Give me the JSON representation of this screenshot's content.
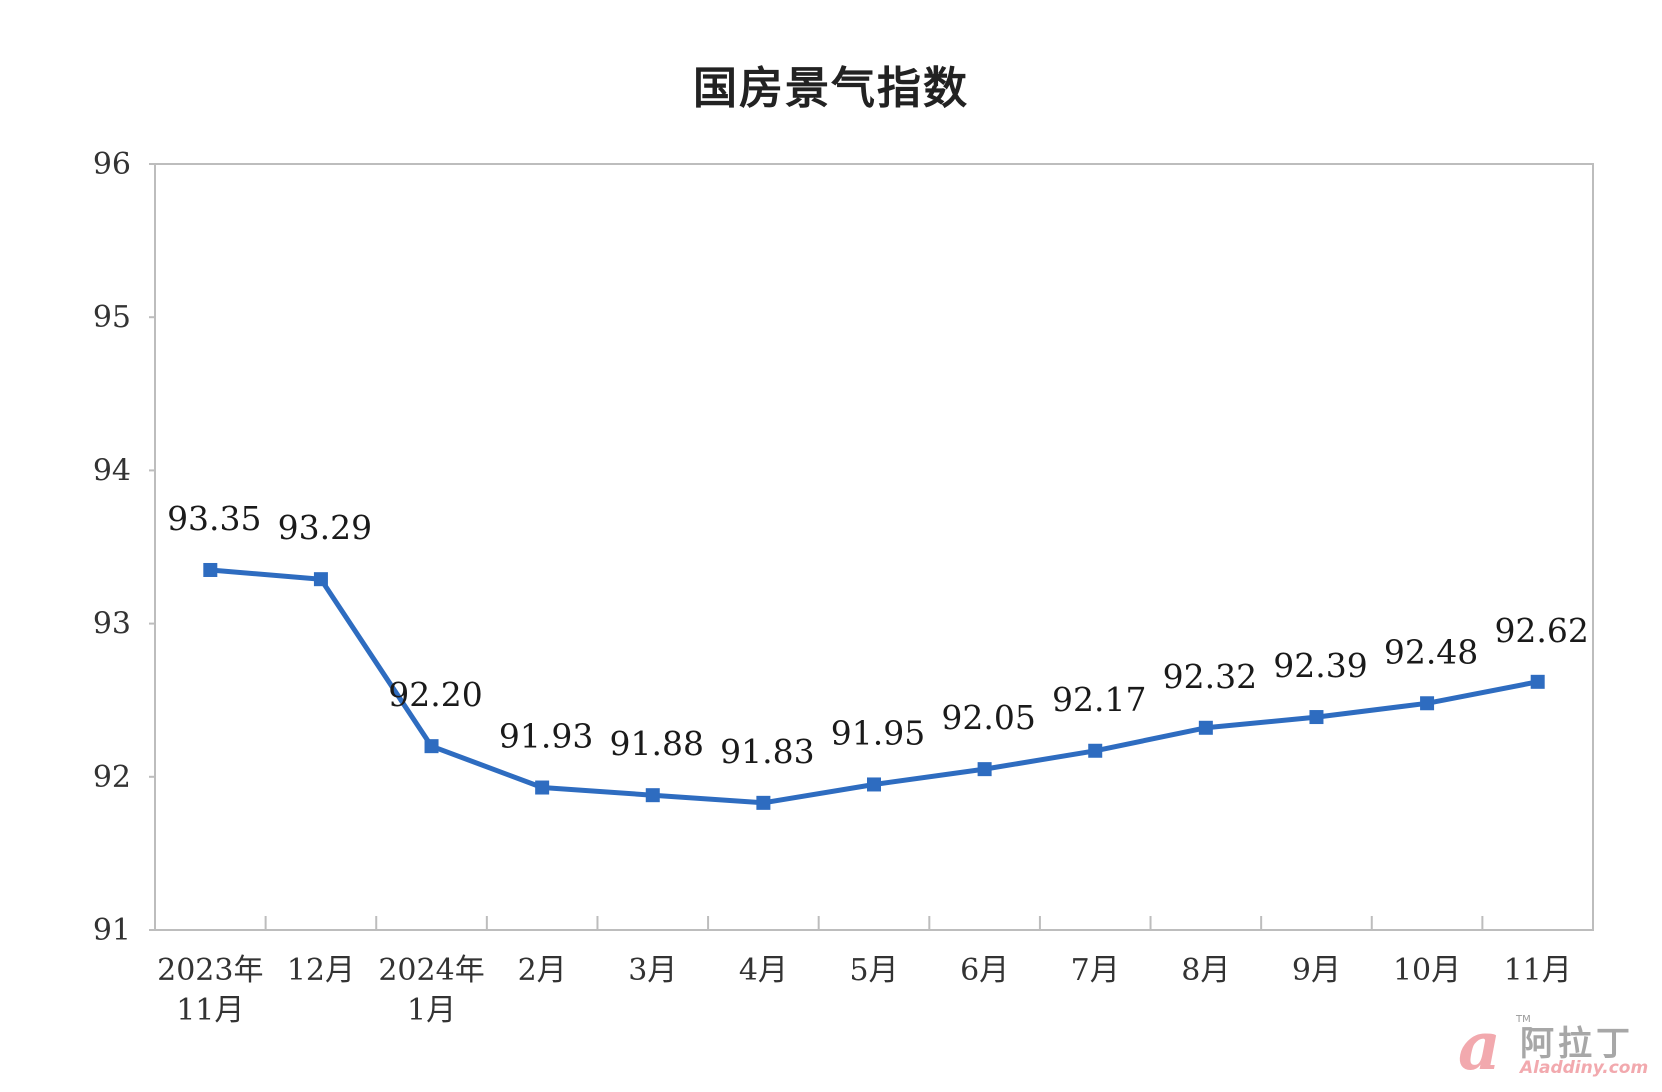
{
  "chart_data": {
    "type": "line",
    "title": "国房景气指数",
    "categories": [
      [
        "2023年",
        "11月"
      ],
      [
        "12月"
      ],
      [
        "2024年",
        "1月"
      ],
      [
        "2月"
      ],
      [
        "3月"
      ],
      [
        "4月"
      ],
      [
        "5月"
      ],
      [
        "6月"
      ],
      [
        "7月"
      ],
      [
        "8月"
      ],
      [
        "9月"
      ],
      [
        "10月"
      ],
      [
        "11月"
      ]
    ],
    "values": [
      93.35,
      93.29,
      92.2,
      91.93,
      91.88,
      91.83,
      91.95,
      92.05,
      92.17,
      92.32,
      92.39,
      92.48,
      92.62
    ],
    "data_labels": [
      "93.35",
      "93.29",
      "92.20",
      "91.93",
      "91.88",
      "91.83",
      "91.95",
      "92.05",
      "92.17",
      "92.32",
      "92.39",
      "92.48",
      "92.62"
    ],
    "ylim": [
      91,
      96
    ],
    "yticks": [
      "91",
      "92",
      "93",
      "94",
      "95",
      "96"
    ],
    "xlabel": "",
    "ylabel": "",
    "grid": false,
    "line_color": "#2e6cc0",
    "marker": "square"
  },
  "watermark": {
    "mark": "a",
    "tm": "TM",
    "name": "阿拉丁",
    "url": "Aladdiny.com"
  }
}
